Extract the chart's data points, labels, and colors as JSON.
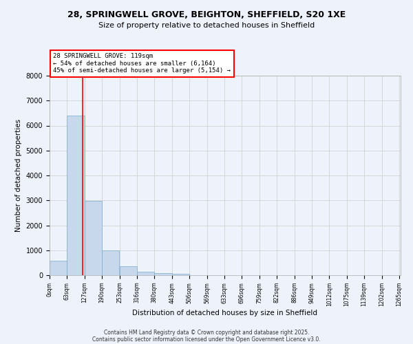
{
  "title": "28, SPRINGWELL GROVE, BEIGHTON, SHEFFIELD, S20 1XE",
  "subtitle": "Size of property relative to detached houses in Sheffield",
  "xlabel": "Distribution of detached houses by size in Sheffield",
  "ylabel": "Number of detached properties",
  "bar_color": "#c8d8ec",
  "bar_edge_color": "#7aabcc",
  "grid_color": "#cccccc",
  "background_color": "#eef2fa",
  "vline_x": 119,
  "vline_color": "red",
  "annotation_text": "28 SPRINGWELL GROVE: 119sqm\n← 54% of detached houses are smaller (6,164)\n45% of semi-detached houses are larger (5,154) →",
  "bins_left": [
    0,
    63,
    126,
    189,
    252,
    315,
    378,
    441,
    504,
    567,
    630,
    693,
    756,
    819,
    882,
    945,
    1008,
    1071,
    1134,
    1202
  ],
  "bin_width": 63,
  "counts": [
    570,
    6400,
    2980,
    980,
    350,
    145,
    80,
    55,
    0,
    0,
    0,
    0,
    0,
    0,
    0,
    0,
    0,
    0,
    0,
    0
  ],
  "xlim": [
    0,
    1265
  ],
  "ylim": [
    0,
    8000
  ],
  "yticks": [
    0,
    1000,
    2000,
    3000,
    4000,
    5000,
    6000,
    7000,
    8000
  ],
  "xtick_labels": [
    "0sqm",
    "63sqm",
    "127sqm",
    "190sqm",
    "253sqm",
    "316sqm",
    "380sqm",
    "443sqm",
    "506sqm",
    "569sqm",
    "633sqm",
    "696sqm",
    "759sqm",
    "822sqm",
    "886sqm",
    "949sqm",
    "1012sqm",
    "1075sqm",
    "1139sqm",
    "1202sqm",
    "1265sqm"
  ],
  "footer1": "Contains HM Land Registry data © Crown copyright and database right 2025.",
  "footer2": "Contains public sector information licensed under the Open Government Licence v3.0."
}
